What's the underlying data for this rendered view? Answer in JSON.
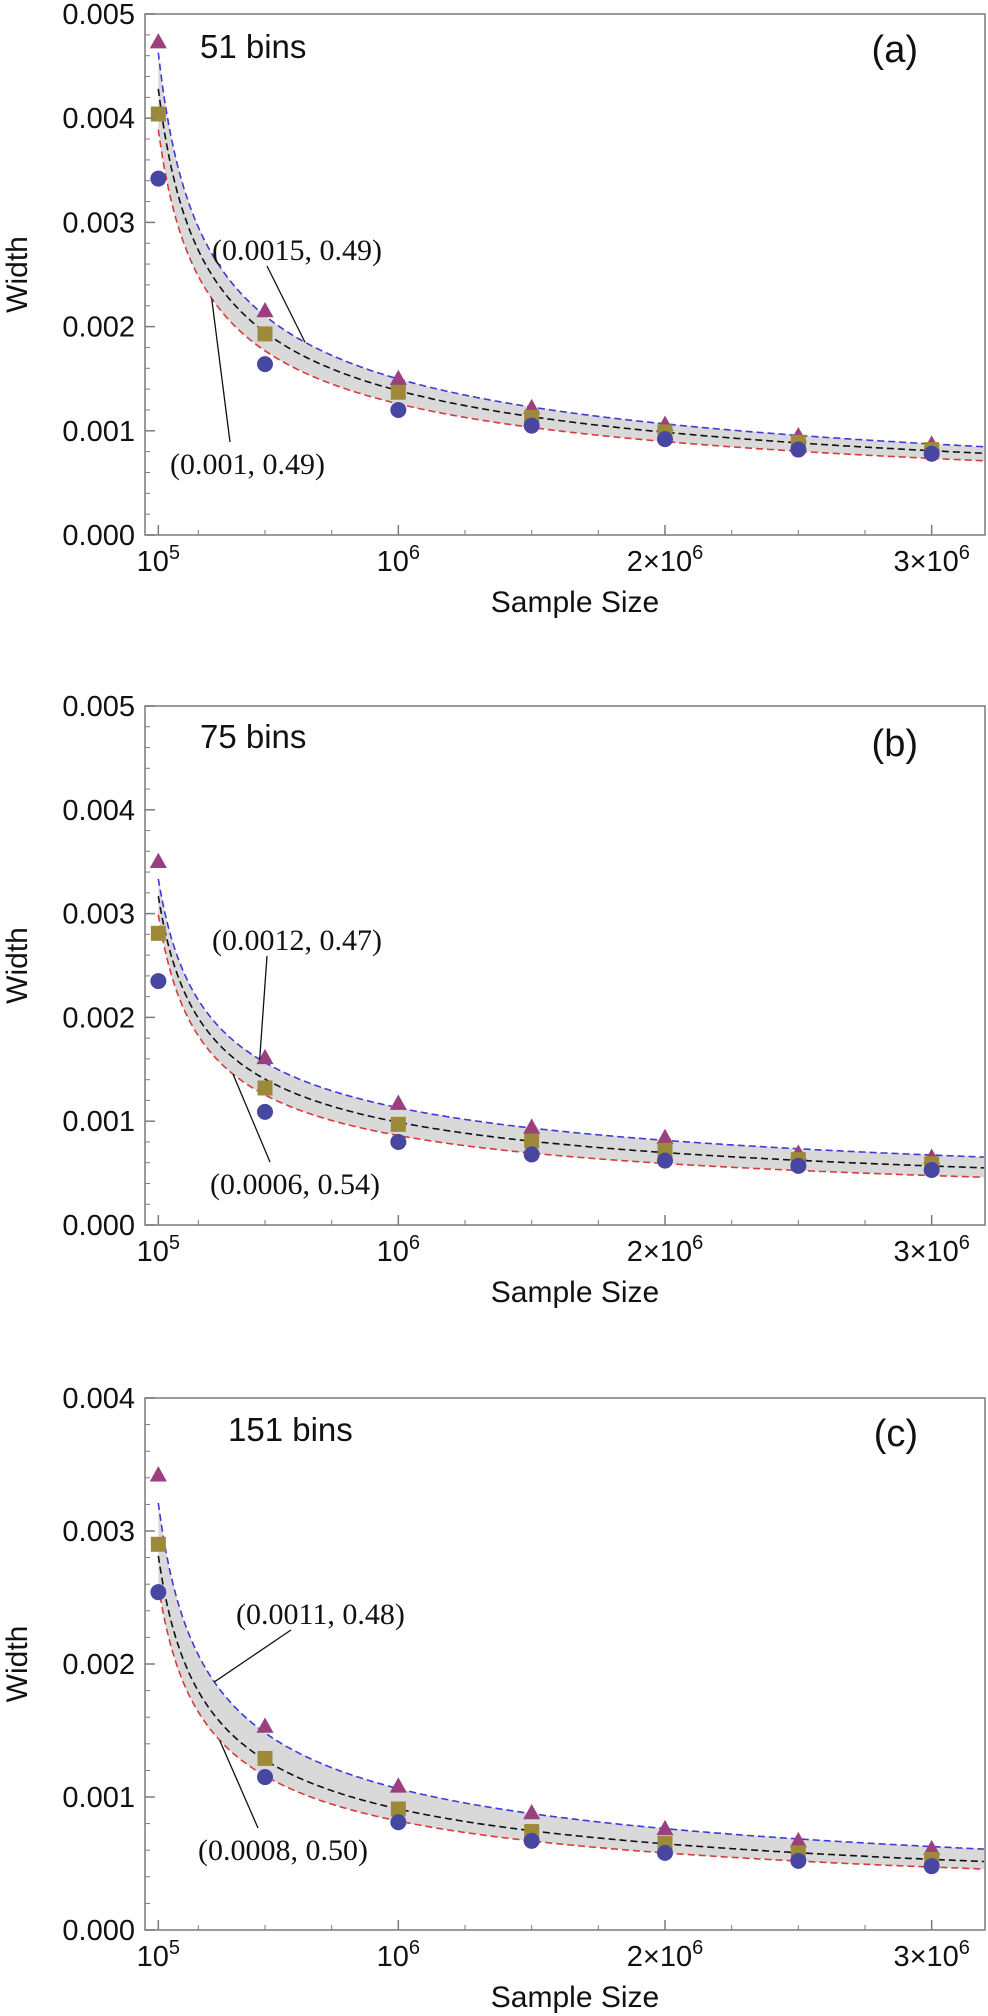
{
  "chart_data": [
    {
      "type": "scatter",
      "panel_label": "(a)",
      "bins_label": "51 bins",
      "xlabel": "Sample Size",
      "ylabel": "Width",
      "xlim": [
        50000,
        3200000
      ],
      "ylim": [
        0,
        0.005
      ],
      "xticks": [
        {
          "value": 100000,
          "base": "10",
          "exp": "5"
        },
        {
          "value": 1000000,
          "base": "10",
          "exp": "6"
        },
        {
          "value": 2000000,
          "base": "2×10",
          "exp": "6"
        },
        {
          "value": 3000000,
          "base": "3×10",
          "exp": "6"
        }
      ],
      "yticks": [
        "0.000",
        "0.001",
        "0.002",
        "0.003",
        "0.004",
        "0.005"
      ],
      "x": [
        100000,
        500000,
        1000000,
        1500000,
        2000000,
        2500000,
        3000000
      ],
      "series": [
        {
          "marker": "triangle",
          "color": "#9b3f7e",
          "values": [
            0.00473,
            0.00215,
            0.0015,
            0.00122,
            0.00106,
            0.00095,
            0.00087
          ]
        },
        {
          "marker": "square",
          "color": "#9c8a3a",
          "values": [
            0.00404,
            0.00193,
            0.00137,
            0.00113,
            0.00099,
            0.00089,
            0.00082
          ]
        },
        {
          "marker": "circle",
          "color": "#4746a0",
          "values": [
            0.00342,
            0.00164,
            0.0012,
            0.00105,
            0.00092,
            0.00082,
            0.00078
          ]
        }
      ],
      "curves": [
        {
          "a": 0.0015,
          "b": 0.49,
          "color": "#3b3bd6"
        },
        {
          "a": 0.001,
          "b": 0.49,
          "color": "#d63b3b"
        }
      ],
      "annotations": [
        {
          "text": "(0.0015, 0.49)",
          "target_x": 650000
        },
        {
          "text": "(0.001, 0.49)",
          "target_x": 300000
        }
      ]
    },
    {
      "type": "scatter",
      "panel_label": "(b)",
      "bins_label": "75 bins",
      "xlabel": "Sample Size",
      "ylabel": "Width",
      "xlim": [
        50000,
        3200000
      ],
      "ylim": [
        0,
        0.005
      ],
      "xticks": [
        {
          "value": 100000,
          "base": "10",
          "exp": "5"
        },
        {
          "value": 1000000,
          "base": "10",
          "exp": "6"
        },
        {
          "value": 2000000,
          "base": "2×10",
          "exp": "6"
        },
        {
          "value": 3000000,
          "base": "3×10",
          "exp": "6"
        }
      ],
      "yticks": [
        "0.000",
        "0.001",
        "0.002",
        "0.003",
        "0.004",
        "0.005"
      ],
      "x": [
        100000,
        500000,
        1000000,
        1500000,
        2000000,
        2500000,
        3000000
      ],
      "series": [
        {
          "marker": "triangle",
          "color": "#9b3f7e",
          "values": [
            0.0035,
            0.00161,
            0.00117,
            0.00094,
            0.00084,
            0.00069,
            0.00065
          ]
        },
        {
          "marker": "square",
          "color": "#9c8a3a",
          "values": [
            0.00281,
            0.00132,
            0.00097,
            0.00081,
            0.00072,
            0.00063,
            0.00059
          ]
        },
        {
          "marker": "circle",
          "color": "#4746a0",
          "values": [
            0.00235,
            0.00109,
            0.0008,
            0.00068,
            0.00062,
            0.00057,
            0.00053
          ]
        }
      ],
      "curves": [
        {
          "a": 0.0012,
          "b": 0.47,
          "color": "#3b3bd6"
        },
        {
          "a": 0.0006,
          "b": 0.54,
          "color": "#d63b3b"
        }
      ],
      "annotations": [
        {
          "text": "(0.0012, 0.47)",
          "target_x": 480000
        },
        {
          "text": "(0.0006, 0.54)",
          "target_x": 380000
        }
      ]
    },
    {
      "type": "scatter",
      "panel_label": "(c)",
      "bins_label": "151 bins",
      "xlabel": "Sample Size",
      "ylabel": "Width",
      "xlim": [
        50000,
        3200000
      ],
      "ylim": [
        0,
        0.004
      ],
      "xticks": [
        {
          "value": 100000,
          "base": "10",
          "exp": "5"
        },
        {
          "value": 1000000,
          "base": "10",
          "exp": "6"
        },
        {
          "value": 2000000,
          "base": "2×10",
          "exp": "6"
        },
        {
          "value": 3000000,
          "base": "3×10",
          "exp": "6"
        }
      ],
      "yticks": [
        "0.000",
        "0.001",
        "0.002",
        "0.003",
        "0.004"
      ],
      "x": [
        100000,
        500000,
        1000000,
        1500000,
        2000000,
        2500000,
        3000000
      ],
      "series": [
        {
          "marker": "triangle",
          "color": "#9b3f7e",
          "values": [
            0.00342,
            0.00153,
            0.00108,
            0.00088,
            0.00076,
            0.00067,
            0.00061
          ]
        },
        {
          "marker": "square",
          "color": "#9c8a3a",
          "values": [
            0.0029,
            0.00129,
            0.00091,
            0.00074,
            0.00065,
            0.00058,
            0.00053
          ]
        },
        {
          "marker": "circle",
          "color": "#4746a0",
          "values": [
            0.00254,
            0.00115,
            0.00081,
            0.00067,
            0.00058,
            0.00052,
            0.00048
          ]
        }
      ],
      "curves": [
        {
          "a": 0.0011,
          "b": 0.48,
          "color": "#3b3bd6"
        },
        {
          "a": 0.0008,
          "b": 0.5,
          "color": "#d63b3b"
        }
      ],
      "annotations": [
        {
          "text": "(0.0011, 0.48)",
          "target_x": 310000
        },
        {
          "text": "(0.0008, 0.50)",
          "target_x": 330000
        }
      ]
    }
  ]
}
